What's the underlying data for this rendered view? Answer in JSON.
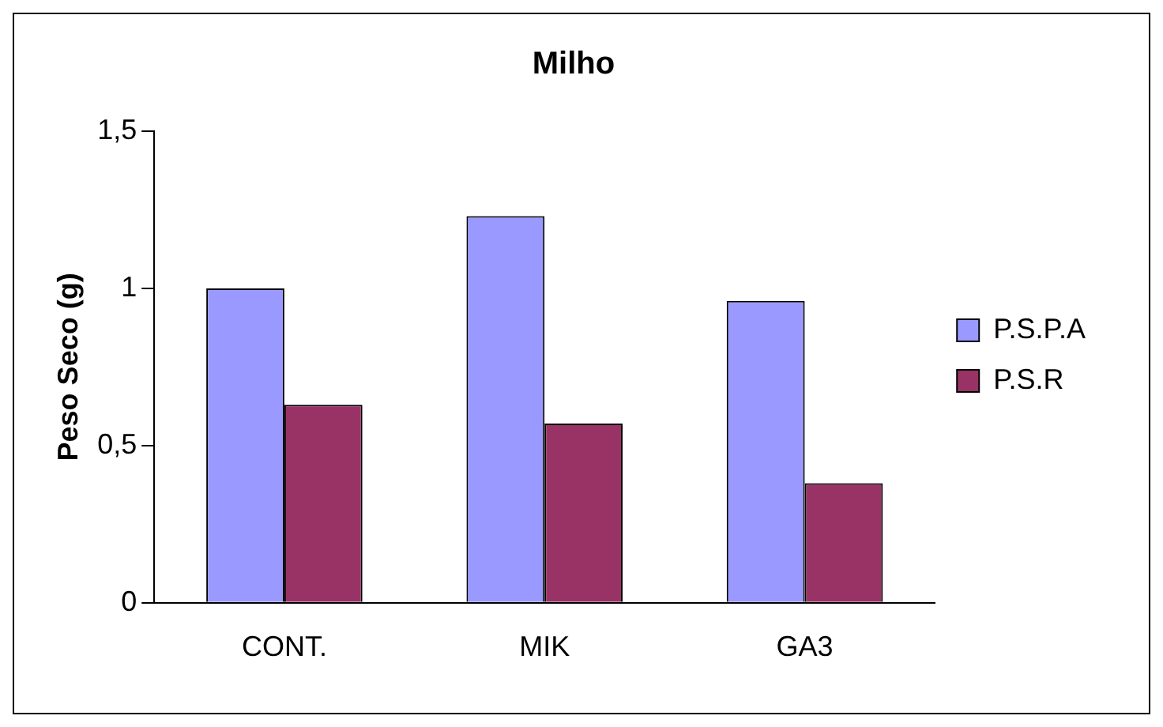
{
  "chart_data": {
    "type": "bar",
    "title": "Milho",
    "ylabel": "Peso Seco (g)",
    "categories": [
      "CONT.",
      "MIK",
      "GA3"
    ],
    "series": [
      {
        "name": "P.S.P.A",
        "color": "#9999ff",
        "values": [
          1.0,
          1.23,
          0.96
        ]
      },
      {
        "name": "P.S.R",
        "color": "#993366",
        "values": [
          0.63,
          0.57,
          0.38
        ]
      }
    ],
    "ylim": [
      0,
      1.5
    ],
    "yticks": [
      0,
      {
        "value": 0.5,
        "label": "0,5"
      },
      1,
      {
        "value": 1.5,
        "label": "1,5"
      }
    ],
    "grid": false,
    "legend": "right"
  }
}
